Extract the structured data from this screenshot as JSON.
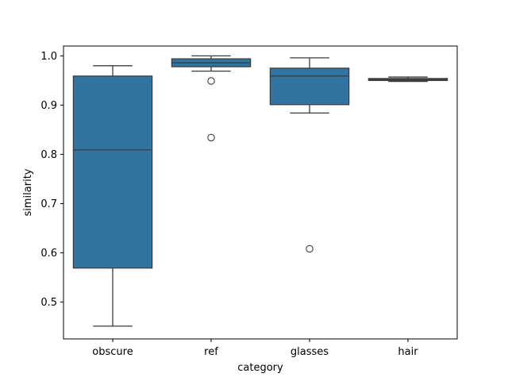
{
  "chart_data": {
    "type": "box",
    "title": "",
    "xlabel": "category",
    "ylabel": "similarity",
    "ylim": [
      0.425,
      1.02
    ],
    "yticks": [
      0.5,
      0.6,
      0.7,
      0.8,
      0.9,
      1.0
    ],
    "ytick_labels": [
      "0.5",
      "0.6",
      "0.7",
      "0.8",
      "0.9",
      "1.0"
    ],
    "grid": false,
    "box_color": "#3274a1",
    "line_color": "#3d3d3d",
    "categories": [
      "obscure",
      "ref",
      "glasses",
      "hair"
    ],
    "boxes": [
      {
        "category": "obscure",
        "whisker_low": 0.451,
        "q1": 0.569,
        "median": 0.809,
        "q3": 0.959,
        "whisker_high": 0.98,
        "outliers": []
      },
      {
        "category": "ref",
        "whisker_low": 0.969,
        "q1": 0.978,
        "median": 0.986,
        "q3": 0.994,
        "whisker_high": 1.0,
        "outliers": [
          0.949,
          0.834
        ]
      },
      {
        "category": "glasses",
        "whisker_low": 0.884,
        "q1": 0.901,
        "median": 0.959,
        "q3": 0.975,
        "whisker_high": 0.996,
        "outliers": [
          0.608
        ]
      },
      {
        "category": "hair",
        "whisker_low": 0.948,
        "q1": 0.95,
        "median": 0.952,
        "q3": 0.954,
        "whisker_high": 0.957,
        "outliers": []
      }
    ]
  }
}
